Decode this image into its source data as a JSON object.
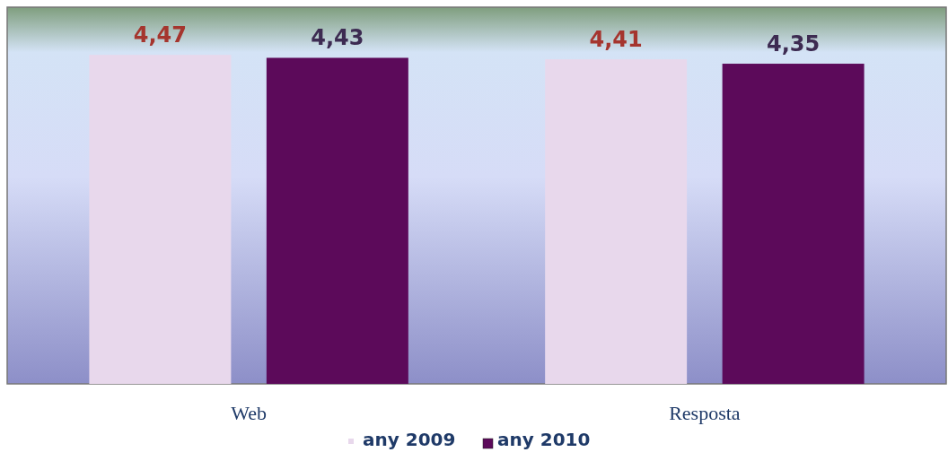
{
  "chart_data": {
    "type": "bar",
    "categories": [
      "Web",
      "Resposta"
    ],
    "series": [
      {
        "name": "any 2009",
        "color": "#e8d8ec",
        "values": [
          4.47,
          4.41
        ],
        "value_labels": [
          "4,47",
          "4,41"
        ]
      },
      {
        "name": "any 2010",
        "color": "#5c0a5a",
        "values": [
          4.43,
          4.35
        ],
        "value_labels": [
          "4,43",
          "4,35"
        ]
      }
    ],
    "tick_labels": "x",
    "legend": "bottom"
  }
}
